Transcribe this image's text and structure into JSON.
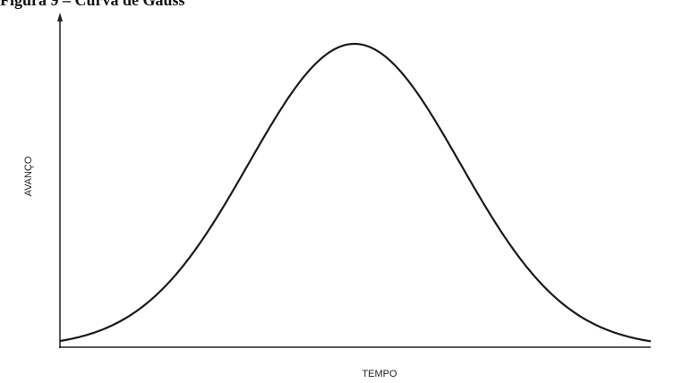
{
  "title": "Figura 9 – Curva de Gauss",
  "axes": {
    "y_label": "AVANÇO",
    "x_label": "TEMPO"
  }
}
